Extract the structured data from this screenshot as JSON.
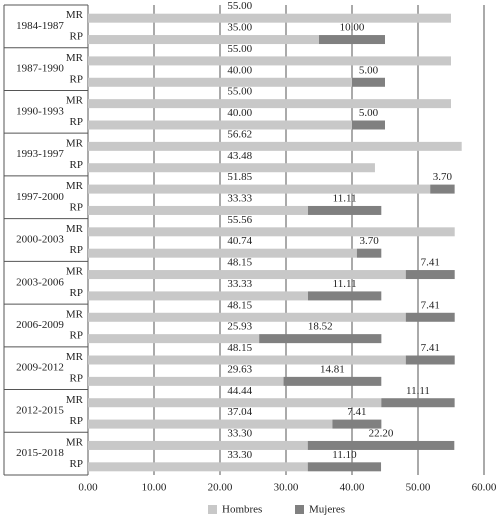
{
  "chart_data": {
    "type": "stacked-barh",
    "groups": [
      "1984-1987",
      "1987-1990",
      "1990-1993",
      "1993-1997",
      "1997-2000",
      "2000-2003",
      "2003-2006",
      "2006-2009",
      "2009-2012",
      "2012-2015",
      "2015-2018"
    ],
    "categories": [
      "MR",
      "RP",
      "MR",
      "RP",
      "MR",
      "RP",
      "MR",
      "RP",
      "MR",
      "RP",
      "MR",
      "RP",
      "MR",
      "RP",
      "MR",
      "RP",
      "MR",
      "RP",
      "MR",
      "RP",
      "MR",
      "RP"
    ],
    "series": [
      {
        "name": "Hombres",
        "color": "#c8c8c8",
        "values": [
          55,
          35,
          55,
          40,
          55,
          40,
          56.62,
          43.48,
          51.85,
          33.33,
          55.56,
          40.74,
          48.15,
          33.33,
          48.15,
          25.93,
          48.15,
          29.63,
          44.44,
          37.04,
          33.3,
          33.3
        ],
        "value_labels": [
          "55.00",
          "35.00",
          "55.00",
          "40.00",
          "55.00",
          "40.00",
          "56.62",
          "43.48",
          "51.85",
          "33.33",
          "55.56",
          "40.74",
          "48.15",
          "33.33",
          "48.15",
          "25.93",
          "48.15",
          "29.63",
          "44.44",
          "37.04",
          "33.30",
          "33.30"
        ]
      },
      {
        "name": "Mujeres",
        "color": "#808080",
        "values": [
          null,
          10,
          null,
          5,
          null,
          5,
          null,
          null,
          3.7,
          11.11,
          null,
          3.7,
          7.41,
          11.11,
          7.41,
          18.52,
          7.41,
          14.81,
          11.11,
          7.41,
          22.2,
          11.1
        ],
        "value_labels": [
          null,
          "10.00",
          null,
          "5.00",
          null,
          "5.00",
          null,
          null,
          "3.70",
          "11.11",
          null,
          "3.70",
          "7.41",
          "11.11",
          "7.41",
          "18.52",
          "7.41",
          "14.81",
          "11.11",
          "7.41",
          "22.20",
          "11.10"
        ]
      }
    ],
    "xlim": [
      0,
      60
    ],
    "xticks": [
      {
        "value": 0,
        "label": "0.00"
      },
      {
        "value": 10,
        "label": "10.00"
      },
      {
        "value": 20,
        "label": "20.00"
      },
      {
        "value": 30,
        "label": "30.00"
      },
      {
        "value": 40,
        "label": "40.00"
      },
      {
        "value": 50,
        "label": "50.00"
      },
      {
        "value": 60,
        "label": "60.00"
      }
    ],
    "grid": true
  }
}
